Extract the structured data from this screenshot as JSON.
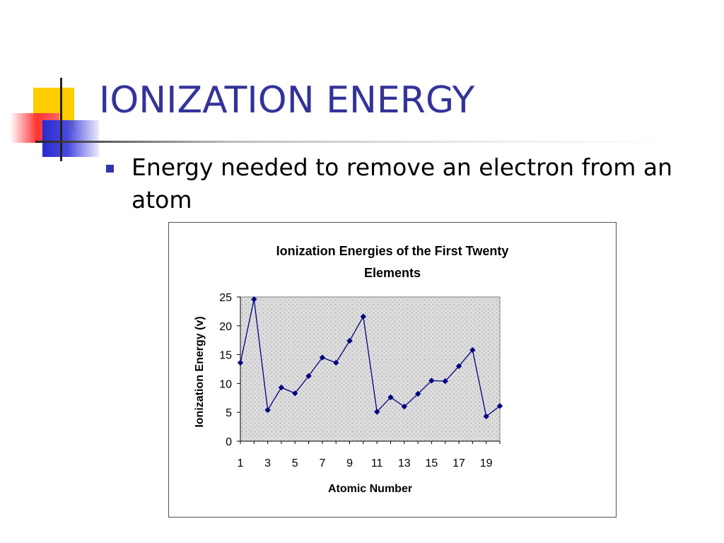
{
  "slide": {
    "title": "IONIZATION ENERGY",
    "bullet": "Energy needed to remove an electron from an atom",
    "colors": {
      "title": "#333399",
      "bullet_marker": "#3333aa"
    }
  },
  "chart_data": {
    "type": "line",
    "title_lines": [
      "Ionization Energies of the First Twenty",
      "Elements"
    ],
    "xlabel": "Atomic Number",
    "ylabel": "Ionization Energy (v)",
    "x": [
      1,
      2,
      3,
      4,
      5,
      6,
      7,
      8,
      9,
      10,
      11,
      12,
      13,
      14,
      15,
      16,
      17,
      18,
      19,
      20
    ],
    "x_tick_labels": [
      "1",
      "3",
      "5",
      "7",
      "9",
      "11",
      "13",
      "15",
      "17",
      "19"
    ],
    "y_ticks": [
      0,
      5,
      10,
      15,
      20,
      25
    ],
    "ylim": [
      0,
      25
    ],
    "series": [
      {
        "values": [
          13.6,
          24.6,
          5.4,
          9.3,
          8.3,
          11.3,
          14.5,
          13.6,
          17.4,
          21.6,
          5.1,
          7.6,
          6.0,
          8.2,
          10.5,
          10.4,
          13.0,
          15.8,
          4.3,
          6.1
        ],
        "color": "#000080"
      }
    ],
    "grid": false,
    "legend": "none",
    "plot_background": "#e0e0e0"
  }
}
